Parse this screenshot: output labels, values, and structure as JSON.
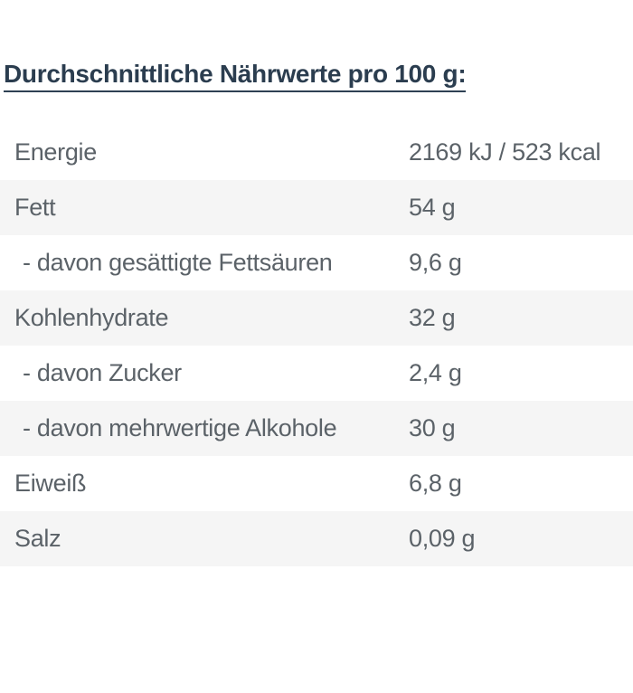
{
  "title": {
    "text": "Durchschnittliche Nährwerte pro 100 g:",
    "color": "#2b3d4f",
    "underline_color": "#2e4154"
  },
  "table": {
    "stripe_color": "#f5f5f5",
    "text_color": "#5b6268",
    "columns": [
      "nutrient",
      "amount_per_100g"
    ],
    "rows": [
      {
        "label": "Energie",
        "value": "2169 kJ / 523 kcal"
      },
      {
        "label": "Fett",
        "value": "54 g"
      },
      {
        "label": "- davon gesättigte Fettsäuren",
        "value": "9,6 g"
      },
      {
        "label": "Kohlenhydrate",
        "value": "32 g"
      },
      {
        "label": "- davon Zucker",
        "value": "2,4 g"
      },
      {
        "label": "- davon mehrwertige Alkohole",
        "value": "30 g"
      },
      {
        "label": "Eiweiß",
        "value": "6,8 g"
      },
      {
        "label": "Salz",
        "value": "0,09 g"
      }
    ]
  }
}
